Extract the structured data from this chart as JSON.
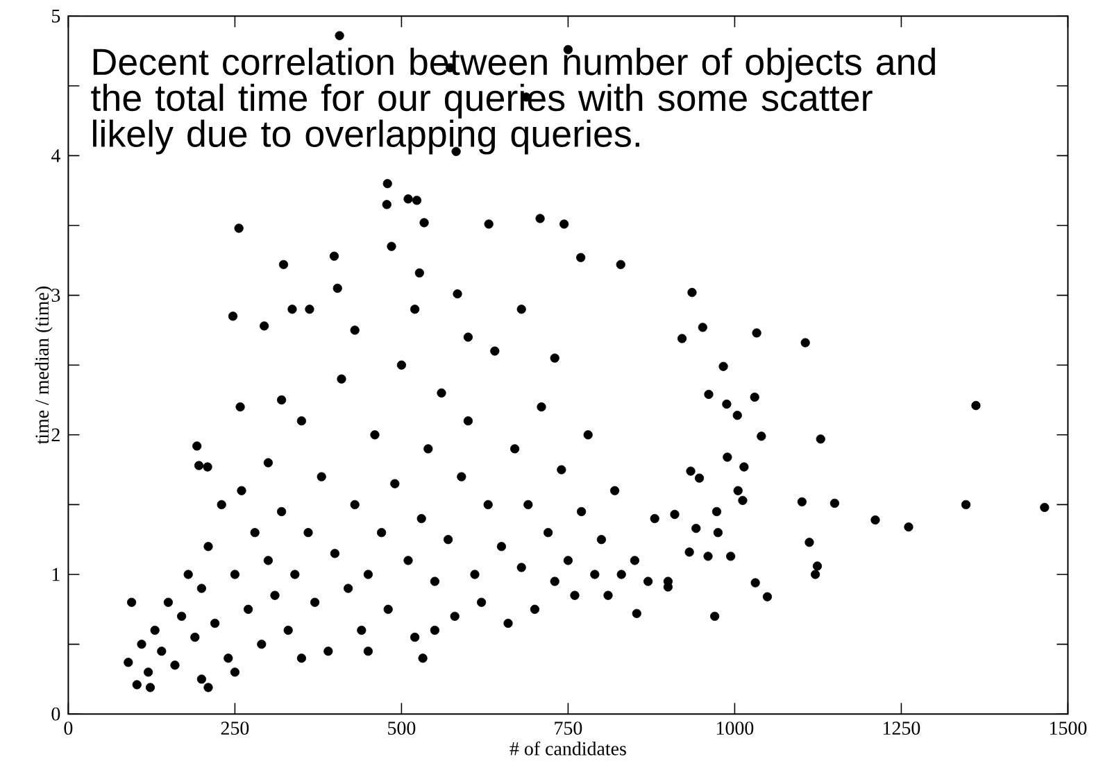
{
  "chart_data": {
    "type": "scatter",
    "xlabel": "# of candidates",
    "ylabel": "time / median (time)",
    "annotations": [
      "Decent correlation between number of objects and the total time for our queries with some scatter likely due to overlapping queries."
    ],
    "xlim": [
      0,
      1500
    ],
    "ylim": [
      0,
      5
    ],
    "xticks": [
      0,
      250,
      500,
      750,
      1000,
      1250,
      1500
    ],
    "yticks": [
      0,
      {
        "value": 0.5,
        "label": null
      },
      1,
      {
        "value": 1.5,
        "label": null
      },
      2,
      {
        "value": 2.5,
        "label": null
      },
      3,
      {
        "value": 3.5,
        "label": null
      },
      4,
      {
        "value": 4.5,
        "label": null
      },
      5
    ],
    "marker": "circle",
    "series": [
      {
        "color": "#000000",
        "x": [
          407,
          750,
          573,
          687,
          582,
          479,
          478,
          510,
          523,
          534,
          256,
          631,
          708,
          744,
          769,
          829,
          323,
          485,
          936,
          921,
          952,
          1033,
          1106,
          983,
          1362,
          961,
          988,
          1030,
          1004,
          1040,
          1129,
          989,
          1014,
          947,
          934,
          1005,
          1012,
          1101,
          1150,
          1347,
          1465,
          1211,
          1261,
          973,
          910,
          942,
          975,
          1112,
          932,
          960,
          994,
          1124,
          1121,
          1031,
          1049,
          970,
          900,
          853,
          95,
          103,
          123,
          90,
          210,
          193,
          196,
          209,
          247,
          258,
          294,
          362,
          336,
          399,
          532,
          527,
          584,
          404,
          110,
          120,
          130,
          140,
          150,
          160,
          170,
          180,
          190,
          200,
          200,
          210,
          220,
          230,
          240,
          250,
          260,
          270,
          280,
          290,
          300,
          300,
          310,
          320,
          330,
          340,
          350,
          360,
          370,
          380,
          390,
          400,
          410,
          420,
          430,
          440,
          450,
          460,
          470,
          480,
          490,
          500,
          510,
          520,
          530,
          540,
          550,
          560,
          570,
          580,
          590,
          600,
          610,
          620,
          630,
          640,
          650,
          660,
          670,
          680,
          690,
          700,
          710,
          720,
          730,
          740,
          750,
          760,
          770,
          780,
          790,
          800,
          810,
          820,
          830,
          850,
          870,
          880,
          900,
          250,
          350,
          450,
          550,
          320,
          430,
          520,
          600,
          680,
          730
        ],
        "values": [
          4.86,
          4.76,
          4.63,
          4.42,
          4.03,
          3.8,
          3.65,
          3.69,
          3.68,
          3.52,
          3.48,
          3.51,
          3.55,
          3.51,
          3.27,
          3.22,
          3.22,
          3.35,
          3.02,
          2.69,
          2.77,
          2.73,
          2.66,
          2.49,
          2.21,
          2.29,
          2.22,
          2.27,
          2.14,
          1.99,
          1.97,
          1.84,
          1.77,
          1.69,
          1.74,
          1.6,
          1.53,
          1.52,
          1.51,
          1.5,
          1.48,
          1.39,
          1.34,
          1.45,
          1.43,
          1.33,
          1.3,
          1.23,
          1.16,
          1.13,
          1.13,
          1.06,
          1.0,
          0.94,
          0.84,
          0.7,
          0.91,
          0.72,
          0.8,
          0.21,
          0.19,
          0.37,
          0.19,
          1.92,
          1.78,
          1.77,
          2.85,
          2.2,
          2.78,
          2.9,
          2.9,
          3.28,
          0.4,
          3.16,
          3.01,
          3.05,
          0.5,
          0.3,
          0.6,
          0.45,
          0.8,
          0.35,
          0.7,
          1.0,
          0.55,
          0.9,
          0.25,
          1.2,
          0.65,
          1.5,
          0.4,
          1.0,
          1.6,
          0.75,
          1.3,
          0.5,
          1.1,
          1.8,
          0.85,
          1.45,
          0.6,
          1.0,
          2.1,
          1.3,
          0.8,
          1.7,
          0.45,
          1.15,
          2.4,
          0.9,
          1.5,
          0.6,
          1.0,
          2.0,
          1.3,
          0.75,
          1.65,
          2.5,
          1.1,
          0.55,
          1.4,
          1.9,
          0.95,
          2.3,
          1.25,
          0.7,
          1.7,
          2.1,
          1.0,
          0.8,
          1.5,
          2.6,
          1.2,
          0.65,
          1.9,
          1.05,
          1.5,
          0.75,
          2.2,
          1.3,
          0.95,
          1.75,
          1.1,
          0.85,
          1.45,
          2.0,
          1.0,
          1.25,
          0.85,
          1.6,
          1.0,
          1.1,
          0.95,
          1.4,
          0.95,
          0.3,
          0.4,
          0.45,
          0.6,
          2.25,
          2.75,
          2.9,
          2.7,
          2.9,
          2.55
        ]
      }
    ]
  }
}
